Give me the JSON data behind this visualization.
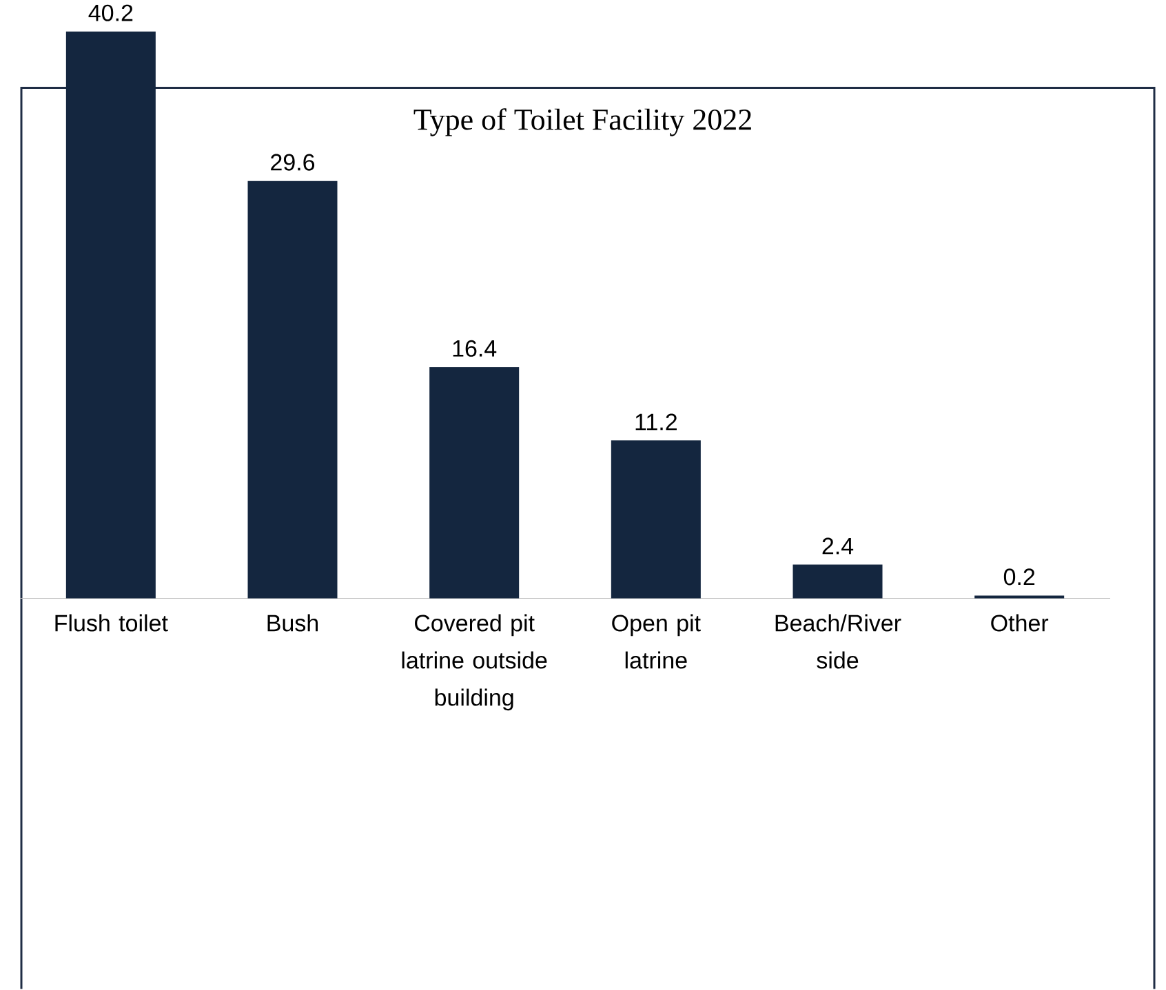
{
  "chart_data": {
    "type": "bar",
    "title": "Type of Toilet Facility 2022",
    "categories": [
      "Flush toilet",
      "Bush",
      "Covered pit latrine outside building",
      "Open pit latrine",
      "Beach/River side",
      "Other"
    ],
    "values": [
      40.2,
      29.6,
      16.4,
      11.2,
      2.4,
      0.2
    ],
    "color": "#14263f",
    "data_labels": true
  }
}
